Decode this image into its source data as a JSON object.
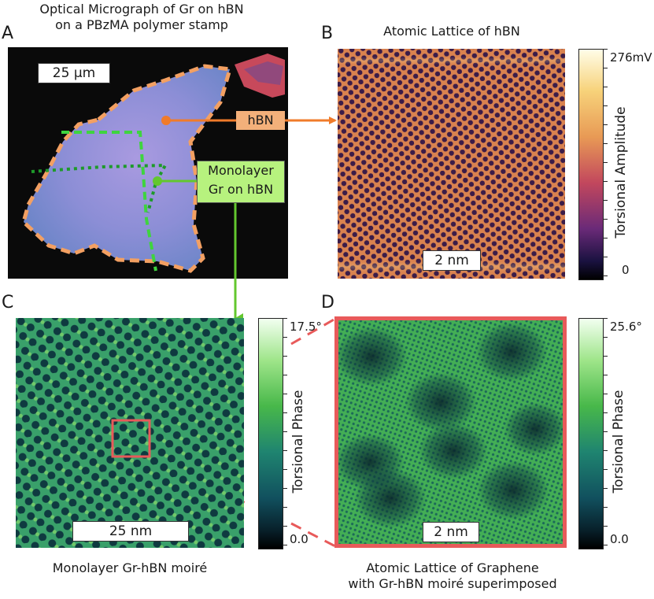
{
  "panels": {
    "A": {
      "letter": "A",
      "title_line1": "Optical Micrograph of Gr on hBN",
      "title_line2": "on a PBzMA polymer stamp",
      "scalebar": "25 μm",
      "label_hbn": "hBN",
      "label_mono_line1": "Monolayer",
      "label_mono_line2": "Gr on hBN"
    },
    "B": {
      "letter": "B",
      "title": "Atomic Lattice of hBN",
      "scalebar": "2 nm",
      "colorbar_max": "276",
      "colorbar_unit": "mV",
      "colorbar_min": "0",
      "colorbar_title": "Torsional Amplitude"
    },
    "C": {
      "letter": "C",
      "scalebar": "25 nm",
      "colorbar_max": "17.5°",
      "colorbar_min": "0.0",
      "colorbar_title": "Torsional Phase",
      "caption": "Monolayer Gr-hBN moiré"
    },
    "D": {
      "letter": "D",
      "scalebar": "2 nm",
      "colorbar_max": "25.6°",
      "colorbar_min": "0.0",
      "colorbar_title": "Torsional Phase",
      "caption_line1": "Atomic Lattice of Graphene",
      "caption_line2": "with Gr-hBN moiré superimposed"
    }
  },
  "colors": {
    "hbn_outline": "#f3a062",
    "hbn_arrow": "#f07b2a",
    "gr_outline": "#3fd43f",
    "gr_dotted": "#1e9a2a",
    "gr_arrow": "#63c72e",
    "zoom_box": "#e85a5a",
    "flake": "#8f8fd6"
  }
}
